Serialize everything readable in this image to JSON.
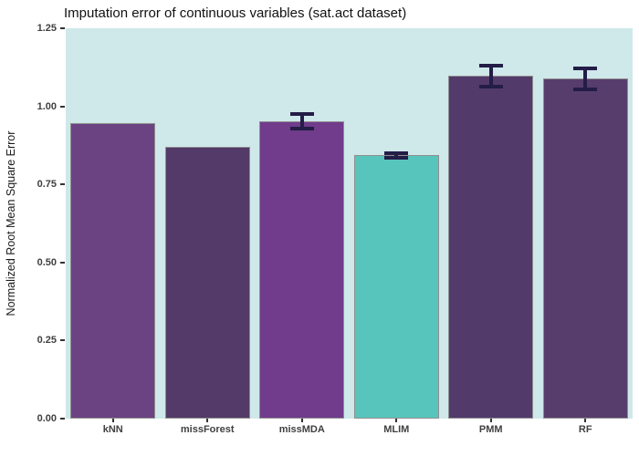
{
  "chart_data": {
    "type": "bar",
    "title": "Imputation error of continuous variables (sat.act dataset)",
    "xlabel": "",
    "ylabel": "Normalized Root Mean Square Error",
    "categories": [
      "kNN",
      "missForest",
      "missMDA",
      "MLIM",
      "PMM",
      "RF"
    ],
    "values": [
      0.945,
      0.869,
      0.951,
      0.843,
      1.098,
      1.089
    ],
    "errors": [
      null,
      null,
      {
        "ymin": 0.922,
        "ymax": 0.981
      },
      {
        "ymin": 0.828,
        "ymax": 0.856
      },
      {
        "ymin": 1.057,
        "ymax": 1.135
      },
      {
        "ymin": 1.048,
        "ymax": 1.127
      }
    ],
    "bar_colors": [
      "#6b4382",
      "#533a68",
      "#703c8b",
      "#58c5bc",
      "#523a6b",
      "#573d6c"
    ],
    "bar_border_color": "#8f8f8f",
    "error_color": "#231d47",
    "panel_bg": "#cfe8ea",
    "ylim": [
      0,
      1.25
    ],
    "yticks": [
      "0.00",
      "0.25",
      "0.50",
      "0.75",
      "1.00",
      "1.25"
    ],
    "grid": false,
    "legend": false
  }
}
